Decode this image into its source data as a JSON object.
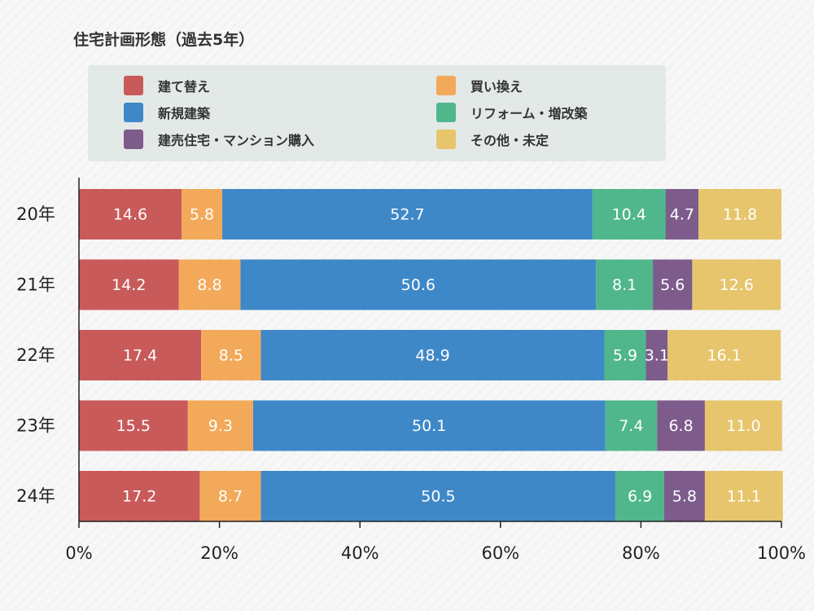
{
  "chart_data": {
    "type": "bar",
    "orientation": "horizontal",
    "stacked": true,
    "title": "住宅計画形態（過去5年）",
    "categories": [
      "20年",
      "21年",
      "22年",
      "23年",
      "24年"
    ],
    "series": [
      {
        "name": "建て替え",
        "color": "#c95a5a",
        "values": [
          14.6,
          14.2,
          17.4,
          15.5,
          17.2
        ]
      },
      {
        "name": "買い換え",
        "color": "#f2a95a",
        "values": [
          5.8,
          8.8,
          8.5,
          9.3,
          8.7
        ]
      },
      {
        "name": "新規建築",
        "color": "#3f88c8",
        "values": [
          52.7,
          50.6,
          48.9,
          50.1,
          50.5
        ]
      },
      {
        "name": "リフォーム・増改築",
        "color": "#50b68c",
        "values": [
          10.4,
          8.1,
          5.9,
          7.4,
          6.9
        ]
      },
      {
        "name": "建売住宅・マンション購入",
        "color": "#7d5c8c",
        "values": [
          4.7,
          5.6,
          3.1,
          6.8,
          5.8
        ]
      },
      {
        "name": "その他・未定",
        "color": "#e6c56c",
        "values": [
          11.8,
          12.6,
          16.1,
          11.0,
          11.1
        ]
      }
    ],
    "value_labels": [
      [
        "14.6",
        "14.2",
        "17.4",
        "15.5",
        "17.2"
      ],
      [
        "5.8",
        "8.8",
        "8.5",
        "9.3",
        "8.7"
      ],
      [
        "52.7",
        "50.6",
        "48.9",
        "50.1",
        "50.5"
      ],
      [
        "10.4",
        "8.1",
        "5.9",
        "7.4",
        "6.9"
      ],
      [
        "4.7",
        "5.6",
        "3.1",
        "6.8",
        "5.8"
      ],
      [
        "11.8",
        "12.6",
        "16.1",
        "11.0",
        "11.1"
      ]
    ],
    "xlim": [
      0,
      100
    ],
    "xticks": [
      "0%",
      "20%",
      "40%",
      "60%",
      "80%",
      "100%"
    ],
    "legend_layout": [
      "建て替え",
      "買い換え",
      "新規建築",
      "リフォーム・増改築",
      "建売住宅・マンション購入",
      "その他・未定"
    ],
    "legend_position": "top",
    "grid": false
  }
}
